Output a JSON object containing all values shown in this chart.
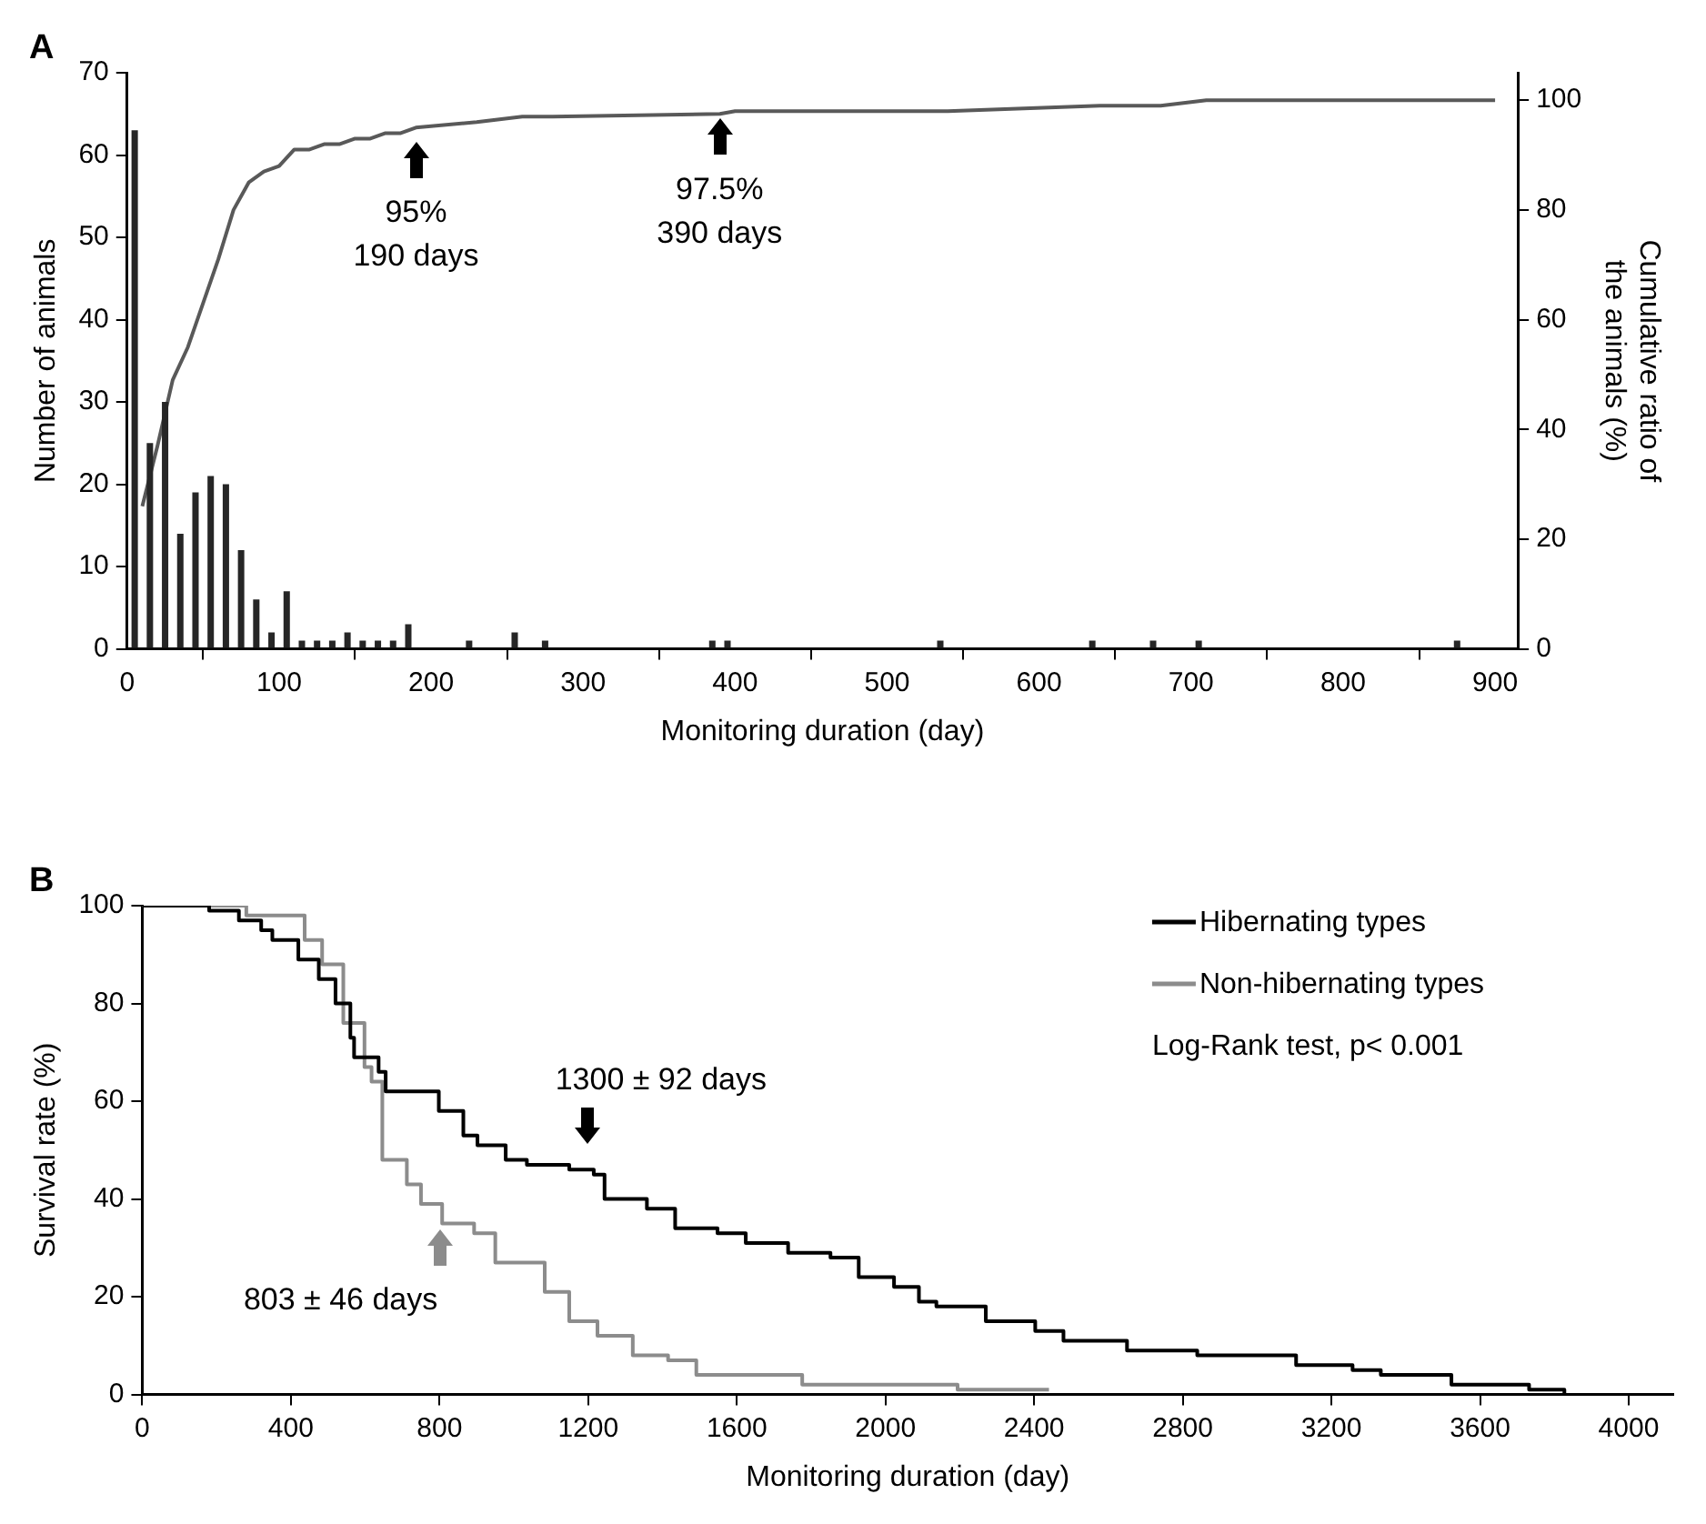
{
  "chart_data": [
    {
      "type": "histogram",
      "title": "A",
      "xlabel": "Monitoring duration (day)",
      "ylabel": "Number of animals",
      "y2label": "Cumulative ratio of\nthe animals (%)",
      "bins": [
        0,
        10,
        20,
        30,
        40,
        50,
        60,
        70,
        80,
        90,
        100,
        110,
        120,
        130,
        140,
        150,
        160,
        170,
        180,
        190,
        200,
        210,
        220,
        230,
        240,
        250,
        260,
        270,
        280,
        290,
        300,
        310,
        320,
        330,
        340,
        350,
        360,
        370,
        380,
        390,
        400,
        410,
        420,
        430,
        440,
        450,
        460,
        470,
        480,
        490,
        500,
        510,
        520,
        530,
        540,
        550,
        560,
        570,
        580,
        590,
        600,
        610,
        620,
        630,
        640,
        650,
        660,
        670,
        680,
        690,
        700,
        710,
        720,
        730,
        740,
        750,
        760,
        770,
        780,
        790,
        800,
        810,
        820,
        830,
        840,
        850,
        860,
        870,
        880,
        890,
        900
      ],
      "values": [
        63,
        25,
        30,
        14,
        19,
        21,
        20,
        12,
        6,
        2,
        7,
        1,
        1,
        1,
        2,
        1,
        1,
        1,
        3,
        0,
        0,
        0,
        1,
        0,
        0,
        2,
        0,
        1,
        0,
        0,
        0,
        0,
        0,
        0,
        0,
        0,
        0,
        0,
        1,
        1,
        0,
        0,
        0,
        0,
        0,
        0,
        0,
        0,
        0,
        0,
        0,
        0,
        0,
        1,
        0,
        0,
        0,
        0,
        0,
        0,
        0,
        0,
        0,
        1,
        0,
        0,
        0,
        1,
        0,
        0,
        1,
        0,
        0,
        0,
        0,
        0,
        0,
        0,
        0,
        0,
        0,
        0,
        0,
        0,
        0,
        0,
        0,
        1,
        0,
        0
      ],
      "color": "#262626",
      "series": [
        {
          "type": "line",
          "axis": "y2",
          "color": "#595959",
          "x": [
            10,
            20,
            30,
            40,
            50,
            60,
            70,
            80,
            90,
            100,
            110,
            120,
            130,
            140,
            150,
            160,
            170,
            180,
            190,
            230,
            260,
            280,
            390,
            400,
            540,
            640,
            680,
            710,
            880,
            900
          ],
          "values": [
            26,
            37,
            49,
            55,
            63,
            71,
            80,
            85,
            87,
            88,
            91,
            91,
            92,
            92,
            93,
            93,
            94,
            94,
            95,
            96,
            97,
            97,
            97.5,
            98,
            98,
            99,
            99,
            100,
            100,
            100
          ]
        }
      ],
      "xlim": [
        0,
        915
      ],
      "xticks": [
        0,
        100,
        200,
        300,
        400,
        500,
        600,
        700,
        800,
        900
      ],
      "ylim": [
        0,
        70
      ],
      "yticks": [
        0,
        10,
        20,
        30,
        40,
        50,
        60,
        70
      ],
      "y2lim": [
        0,
        105
      ],
      "y2ticks": [
        0,
        20,
        40,
        60,
        80,
        100
      ],
      "grid": false,
      "marker": "none",
      "annotations": [
        "95%\n190 days",
        "97.5%\n390 days"
      ]
    },
    {
      "type": "step",
      "title": "B",
      "xlabel": "Monitoring duration (day)",
      "ylabel": "Survival rate (%)",
      "series": [
        {
          "name": "Hibernating types",
          "color": "#000000",
          "x": [
            0,
            180,
            260,
            320,
            350,
            420,
            475,
            520,
            560,
            570,
            636,
            655,
            798,
            864,
            902,
            978,
            1035,
            1149,
            1215,
            1244,
            1358,
            1434,
            1548,
            1624,
            1738,
            1852,
            1928,
            2023,
            2090,
            2137,
            2270,
            2403,
            2479,
            2650,
            2839,
            3105,
            3257,
            3333,
            3523,
            3732,
            3827
          ],
          "values": [
            100,
            99,
            97,
            95,
            93,
            89,
            85,
            80,
            73,
            69,
            66,
            62,
            58,
            53,
            51,
            48,
            47,
            46,
            45,
            40,
            38,
            34,
            33,
            31,
            29,
            28,
            24,
            22,
            19,
            18,
            15,
            13,
            11,
            9,
            8,
            6,
            5,
            4,
            2,
            1,
            0
          ]
        },
        {
          "name": "Non-hibernating types",
          "color": "#8c8c8c",
          "x": [
            0,
            280,
            437,
            484,
            541,
            598,
            617,
            646,
            712,
            750,
            807,
            893,
            950,
            1083,
            1149,
            1225,
            1320,
            1415,
            1491,
            1776,
            2194,
            2440
          ],
          "values": [
            100,
            98,
            93,
            88,
            76,
            67,
            64,
            48,
            43,
            39,
            35,
            33,
            27,
            21,
            15,
            12,
            8,
            7,
            4,
            2,
            1,
            1
          ]
        }
      ],
      "xlim": [
        0,
        4120
      ],
      "xticks": [
        0,
        400,
        800,
        1200,
        1600,
        2000,
        2400,
        2800,
        3200,
        3600,
        4000
      ],
      "ylim": [
        0,
        100
      ],
      "yticks": [
        0,
        20,
        40,
        60,
        80,
        100
      ],
      "grid": false,
      "marker": "none",
      "legend": "top right",
      "annotations": [
        "Log-Rank test, p< 0.001",
        {
          "text": "1300 ± 92 days",
          "x": 1200,
          "y": 46
        },
        {
          "text": "803 ± 46 days",
          "x": 803,
          "y": 39
        }
      ]
    }
  ]
}
